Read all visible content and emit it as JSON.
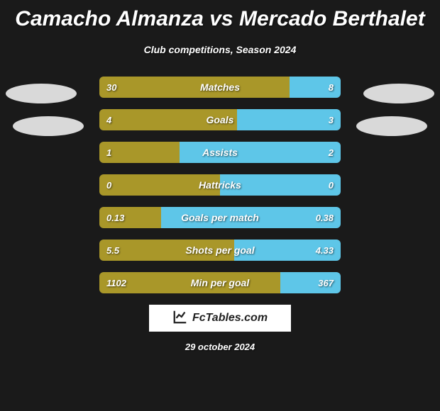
{
  "title": "Camacho Almanza vs Mercado Berthalet",
  "subtitle": "Club competitions, Season 2024",
  "colors": {
    "left": "#a99729",
    "right": "#5ec6e8",
    "background": "#1a1a1a",
    "ellipse": "#d9d9d9",
    "badge_bg": "#ffffff"
  },
  "rows": [
    {
      "label": "Matches",
      "left_val": "30",
      "right_val": "8",
      "left_pct": 78.9,
      "right_pct": 21.1
    },
    {
      "label": "Goals",
      "left_val": "4",
      "right_val": "3",
      "left_pct": 57.1,
      "right_pct": 42.9
    },
    {
      "label": "Assists",
      "left_val": "1",
      "right_val": "2",
      "left_pct": 33.3,
      "right_pct": 66.7
    },
    {
      "label": "Hattricks",
      "left_val": "0",
      "right_val": "0",
      "left_pct": 50.0,
      "right_pct": 50.0
    },
    {
      "label": "Goals per match",
      "left_val": "0.13",
      "right_val": "0.38",
      "left_pct": 25.5,
      "right_pct": 74.5
    },
    {
      "label": "Shots per goal",
      "left_val": "5.5",
      "right_val": "4.33",
      "left_pct": 55.9,
      "right_pct": 44.1
    },
    {
      "label": "Min per goal",
      "left_val": "1102",
      "right_val": "367",
      "left_pct": 75.0,
      "right_pct": 25.0
    }
  ],
  "footer_brand": "FcTables.com",
  "footer_date": "29 october 2024",
  "typography": {
    "title_fontsize": 30,
    "subtitle_fontsize": 14,
    "row_label_fontsize": 14,
    "row_value_fontsize": 13,
    "footer_fontsize": 13
  }
}
